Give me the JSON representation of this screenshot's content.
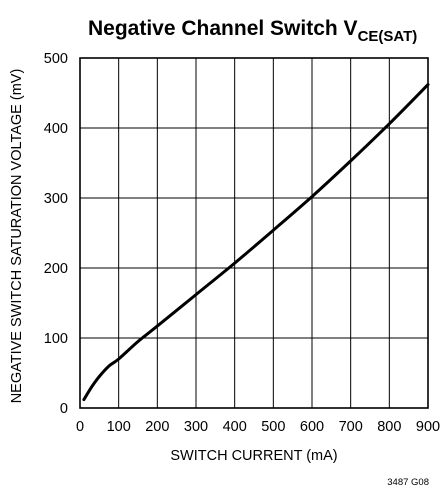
{
  "chart_data": {
    "type": "line",
    "title": "Negative Channel Switch V",
    "title_subscript": "CE(SAT)",
    "xlabel": "SWITCH CURRENT (mA)",
    "ylabel": "NEGATIVE SWITCH SATURATION VOLTAGE (mV)",
    "xlim": [
      0,
      900
    ],
    "ylim": [
      0,
      500
    ],
    "x_ticks": [
      "0",
      "100",
      "200",
      "300",
      "400",
      "500",
      "600",
      "700",
      "800",
      "900"
    ],
    "y_ticks": [
      "0",
      "100",
      "200",
      "300",
      "400",
      "500"
    ],
    "grid": true,
    "series": [
      {
        "x": [
          10,
          30,
          50,
          75,
          100,
          150,
          200,
          300,
          400,
          500,
          600,
          700,
          800,
          900
        ],
        "y": [
          12,
          30,
          45,
          60,
          70,
          95,
          117,
          162,
          207,
          254,
          302,
          353,
          406,
          462
        ]
      }
    ],
    "figure_id": "3487 G08"
  }
}
